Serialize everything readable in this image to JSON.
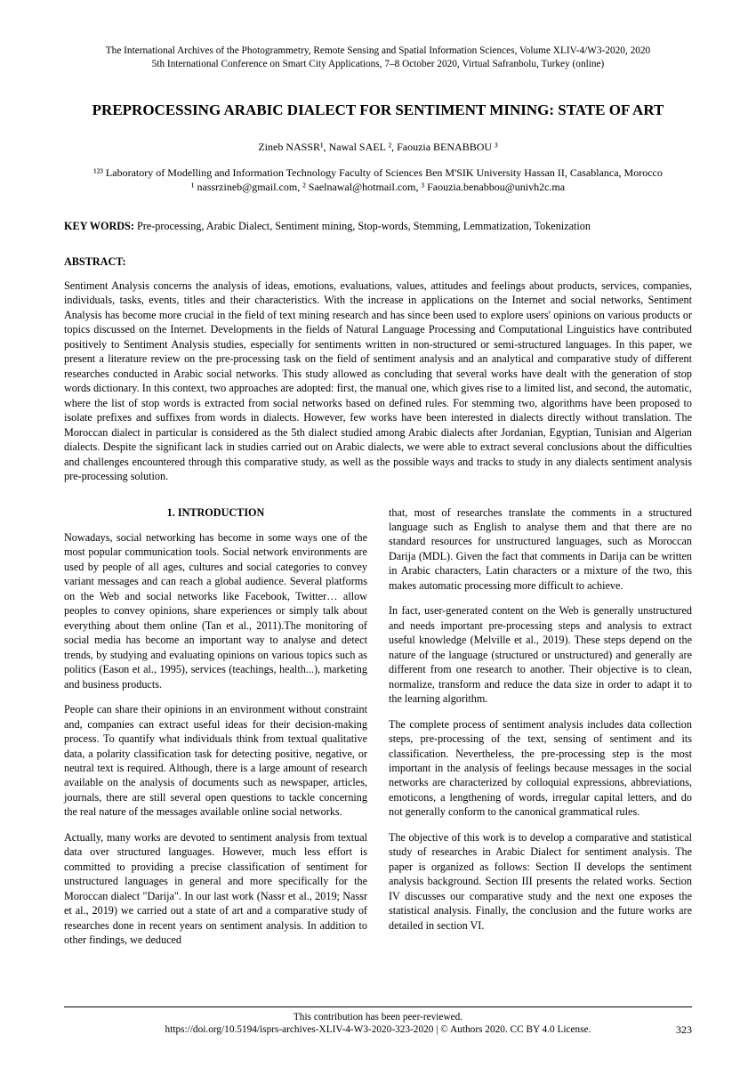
{
  "header": {
    "line1": "The International Archives of the Photogrammetry, Remote Sensing and Spatial Information Sciences, Volume XLIV-4/W3-2020, 2020",
    "line2": "5th International Conference on Smart City Applications, 7–8 October 2020, Virtual Safranbolu, Turkey (online)"
  },
  "title": "PREPROCESSING ARABIC DIALECT FOR SENTIMENT MINING: STATE OF ART",
  "authors": "Zineb NASSR¹, Nawal SAEL ², Faouzia BENABBOU ³",
  "affiliation": {
    "line1": "¹²³ Laboratory of Modelling and Information Technology Faculty of Sciences Ben M'SIK University Hassan II, Casablanca, Morocco",
    "line2": "¹ nassrzineb@gmail.com, ² Saelnawal@hotmail.com, ³ Faouzia.benabbou@univh2c.ma"
  },
  "keywords": {
    "label": "KEY WORDS:",
    "text": " Pre-processing, Arabic Dialect, Sentiment mining, Stop-words, Stemming, Lemmatization, Tokenization"
  },
  "abstract": {
    "label": "ABSTRACT:",
    "body": "Sentiment Analysis concerns the analysis of ideas, emotions, evaluations, values, attitudes and feelings about products, services, companies, individuals, tasks, events, titles and their characteristics. With the increase in applications on the Internet and social networks, Sentiment Analysis has become more crucial in the field of text mining research and has since been used to explore users' opinions on various products or topics discussed on the Internet. Developments in the fields of Natural Language Processing and Computational Linguistics have contributed positively to Sentiment Analysis studies, especially for sentiments written in non-structured or semi-structured languages.  In this paper, we present a literature review on the pre-processing task on the field of sentiment analysis and an analytical and comparative study of different researches conducted in Arabic social networks. This study allowed as concluding that several works have dealt with the generation of stop words dictionary. In this context, two approaches are adopted: first, the manual one, which gives rise to a limited list, and second, the automatic, where the list of stop words is extracted from social networks based on defined rules. For stemming two, algorithms have been proposed to isolate prefixes and suffixes from words in dialects. However, few works have been interested in dialects directly without translation. The Moroccan dialect in particular is considered as the 5th dialect studied among Arabic dialects after Jordanian, Egyptian, Tunisian and Algerian dialects. Despite the significant lack in studies carried out on Arabic dialects, we were able to extract several conclusions about the difficulties and challenges encountered through this comparative study, as well as the possible ways and tracks to study in any dialects sentiment analysis pre-processing solution."
  },
  "section1": {
    "heading": "1.   INTRODUCTION",
    "left": [
      "Nowadays, social networking has become in some ways one of the most popular communication tools. Social network environments are used by people of all ages, cultures and social categories to convey variant messages and can reach a global audience. Several platforms on the Web and social networks like Facebook, Twitter… allow peoples to convey opinions, share experiences or simply talk about everything about them online (Tan et al., 2011).The monitoring of social media has become an important way to analyse and detect trends, by studying and evaluating opinions on various topics such as politics (Eason et al., 1995), services (teachings, health...), marketing  and business products.",
      "People can share their opinions in an environment without constraint and, companies can extract useful ideas for their decision-making process. To quantify what individuals think from textual qualitative data, a polarity classification task for detecting positive, negative, or neutral text is required. Although, there is a large amount of research available on the analysis of documents such as newspaper, articles, journals, there are still several open questions to tackle concerning the real nature of the messages available online social networks.",
      "Actually, many works are devoted to sentiment analysis from textual data over structured languages. However, much less effort is committed to providing a precise classification of sentiment for unstructured languages in general and more specifically for the Moroccan dialect \"Darija\".  In our last work (Nassr et al., 2019; Nassr et al., 2019) we carried out a state of art and a comparative study of researches done in recent years on sentiment analysis. In addition to other findings, we deduced"
    ],
    "right": [
      "that, most of   researches   translate   the   comments   in   a structured language such as English to analyse them and that there are no standard resources for unstructured languages, such as Moroccan Darija (MDL). Given the fact that comments in Darija can be written in Arabic characters, Latin characters or a mixture of the two, this makes automatic processing more difficult to achieve.",
      "In fact, user-generated content on the Web is generally unstructured and needs important pre-processing steps and analysis to extract useful knowledge (Melville et al., 2019). These steps depend on the nature of the language (structured or unstructured) and generally are different from one research to another. Their objective is to clean, normalize, transform and reduce the data size in order to adapt it to the learning algorithm.",
      "The complete process of sentiment analysis includes data collection steps, pre-processing of the text, sensing of sentiment and its classification. Nevertheless, the pre-processing step is the most important in the analysis of feelings because messages in the social networks are characterized by colloquial expressions, abbreviations, emoticons, a lengthening of words, irregular capital letters, and do not generally conform to the canonical grammatical rules.",
      "The objective of this work is to develop a comparative and statistical study of researches in Arabic Dialect for sentiment analysis. The paper is organized as follows: Section II develops the sentiment analysis background. Section III presents the related works. Section IV discusses our comparative study and the next one exposes the statistical analysis. Finally, the conclusion and the future works are detailed in section VI."
    ]
  },
  "footer": {
    "line1": "This contribution has been peer-reviewed.",
    "line2": "https://doi.org/10.5194/isprs-archives-XLIV-4-W3-2020-323-2020 | © Authors 2020. CC BY 4.0 License.",
    "pagenum": "323"
  }
}
